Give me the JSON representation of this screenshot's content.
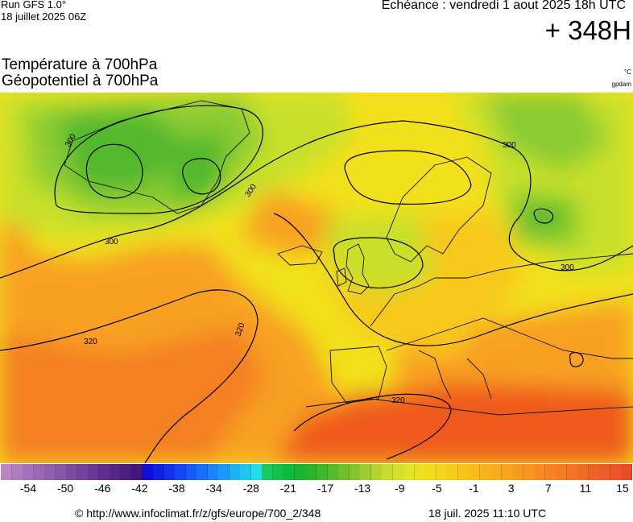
{
  "header": {
    "run_label": "Run GFS 1.0°",
    "run_date": "18 juillet 2025 06Z",
    "valid_time": "Echéance : vendredi 1 aout 2025 18h UTC",
    "lead_time": "+ 348H"
  },
  "titles": {
    "line1": "Température à 700hPa",
    "line2": "Géopotentiel à 700hPa",
    "unit_temperature": "°C",
    "unit_geopotential": "gpdam"
  },
  "map": {
    "contour_labels": [
      "300",
      "300",
      "300",
      "300",
      "300",
      "320",
      "320",
      "320"
    ],
    "colors": {
      "green_dark": "#52b82e",
      "green": "#8ccc33",
      "yellow_green": "#c8e02a",
      "yellow": "#f2e01c",
      "yellow_orange": "#f8c81a",
      "orange": "#f8a020",
      "orange_dark": "#f48022",
      "red_orange": "#f05a1e",
      "coastline": "#111111",
      "contour": "#000000"
    }
  },
  "colorbar": {
    "colors": [
      "#b886c6",
      "#ae7cc0",
      "#a472ba",
      "#9a68b4",
      "#9060ae",
      "#8656a8",
      "#7c4ca2",
      "#72429c",
      "#683896",
      "#602e90",
      "#562688",
      "#4c1e82",
      "#42167c",
      "#0e0ed8",
      "#1020e6",
      "#1232ee",
      "#1446f4",
      "#165af8",
      "#186efc",
      "#1a84fc",
      "#1c9af8",
      "#1eb0f4",
      "#20c6f0",
      "#24dcec",
      "#1ac860",
      "#14c04c",
      "#10b83e",
      "#18b432",
      "#28b42a",
      "#3cb82a",
      "#54bc2a",
      "#6cc02c",
      "#84c42e",
      "#9ccc30",
      "#b4d432",
      "#c8dc30",
      "#d6e02c",
      "#e2e428",
      "#ece024",
      "#f2dc20",
      "#f6d41e",
      "#f8cc1c",
      "#f8c41c",
      "#f8bc1c",
      "#f8b41e",
      "#f8ac1e",
      "#f8a420",
      "#f89c20",
      "#f89420",
      "#f88c22",
      "#f68422",
      "#f47c22",
      "#f27424",
      "#f06c24",
      "#ee6426",
      "#ec5c26",
      "#ea5428",
      "#e84c28"
    ],
    "tick_labels": [
      "-54",
      "-50",
      "-46",
      "-42",
      "-38",
      "-34",
      "-28",
      "-21",
      "-17",
      "-13",
      "-9",
      "-5",
      "-1",
      "3",
      "7",
      "11",
      "15"
    ]
  },
  "footer": {
    "url": "© http://www.infoclimat.fr/z/gfs/europe/700_2/348",
    "generated": "18 juil. 2025 11:10 UTC"
  }
}
